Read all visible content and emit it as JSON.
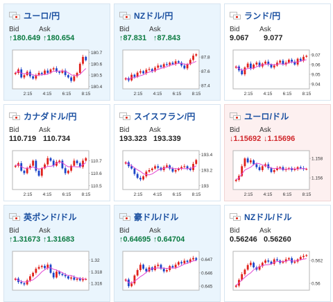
{
  "colors": {
    "up_candle": "#e0211b",
    "down_candle": "#1c44c8",
    "ma_line": "#e246d2",
    "frame": "#b5b5b5",
    "bid_up": "#0a7a40",
    "bid_down": "#d0262a",
    "title": "#1a4fa0"
  },
  "icons": {
    "up": "↑",
    "down": "↓"
  },
  "cards": [
    {
      "pair": "ユーロ/円",
      "flag": "eu-jp",
      "theme": "hl-blue",
      "bid_label": "Bid",
      "ask_label": "Ask",
      "bid": "180.649",
      "ask": "180.654",
      "trend": "up",
      "chart_data": {
        "type": "candlestick",
        "x_ticks": [
          "2:15",
          "4:15",
          "6:15",
          "8:15"
        ],
        "y_ticks": [
          "180.7",
          "180.6",
          "180.5",
          "180.4"
        ],
        "ylim": [
          180.38,
          180.72
        ],
        "closes": [
          180.52,
          180.55,
          180.48,
          180.5,
          180.53,
          180.49,
          180.47,
          180.5,
          180.52,
          180.51,
          180.54,
          180.52,
          180.55,
          180.56,
          180.53,
          180.52,
          180.54,
          180.5,
          180.48,
          180.45,
          180.49,
          180.52,
          180.6,
          180.66,
          180.63
        ]
      }
    },
    {
      "pair": "NZドル/円",
      "flag": "nz-jp",
      "theme": "hl-blue",
      "bid_label": "Bid",
      "ask_label": "Ask",
      "bid": "87.831",
      "ask": "87.843",
      "trend": "up",
      "chart_data": {
        "type": "candlestick",
        "x_ticks": [
          "2:15",
          "4:15",
          "6:15",
          "8:15"
        ],
        "y_ticks": [
          "87.8",
          "87.6",
          "87.4"
        ],
        "ylim": [
          87.35,
          87.9
        ],
        "closes": [
          87.5,
          87.47,
          87.55,
          87.52,
          87.58,
          87.6,
          87.57,
          87.62,
          87.63,
          87.6,
          87.65,
          87.68,
          87.66,
          87.7,
          87.69,
          87.72,
          87.7,
          87.74,
          87.72,
          87.68,
          87.64,
          87.7,
          87.76,
          87.82,
          87.84
        ]
      }
    },
    {
      "pair": "ランド/円",
      "flag": "za-jp",
      "theme": "",
      "bid_label": "Bid",
      "ask_label": "Ask",
      "bid": "9.067",
      "ask": "9.077",
      "trend": "flat",
      "chart_data": {
        "type": "candlestick",
        "x_ticks": [
          "2:15",
          "4:15",
          "6:15",
          "8:15"
        ],
        "y_ticks": [
          "9.07",
          "9.06",
          "9.05",
          "9.04"
        ],
        "ylim": [
          9.035,
          9.075
        ],
        "closes": [
          9.058,
          9.054,
          9.05,
          9.057,
          9.061,
          9.056,
          9.06,
          9.062,
          9.058,
          9.061,
          9.063,
          9.06,
          9.057,
          9.059,
          9.062,
          9.064,
          9.06,
          9.062,
          9.065,
          9.063,
          9.06,
          9.066,
          9.064,
          9.068,
          9.069
        ]
      }
    },
    {
      "pair": "カナダドル/円",
      "flag": "ca-jp",
      "theme": "",
      "bid_label": "Bid",
      "ask_label": "Ask",
      "bid": "110.719",
      "ask": "110.734",
      "trend": "flat",
      "chart_data": {
        "type": "candlestick",
        "x_ticks": [
          "2:15",
          "4:15",
          "6:15",
          "8:15"
        ],
        "y_ticks": [
          "110.7",
          "110.6",
          "110.5"
        ],
        "ylim": [
          110.47,
          110.78
        ],
        "closes": [
          110.66,
          110.68,
          110.62,
          110.6,
          110.64,
          110.66,
          110.7,
          110.62,
          110.58,
          110.64,
          110.67,
          110.72,
          110.7,
          110.66,
          110.69,
          110.7,
          110.64,
          110.6,
          110.62,
          110.66,
          110.7,
          110.68,
          110.65,
          110.7,
          110.72
        ]
      }
    },
    {
      "pair": "スイスフラン/円",
      "flag": "ch-jp",
      "theme": "",
      "bid_label": "Bid",
      "ask_label": "Ask",
      "bid": "193.323",
      "ask": "193.339",
      "trend": "flat",
      "chart_data": {
        "type": "candlestick",
        "x_ticks": [
          "2:15",
          "4:15",
          "6:15",
          "8:15"
        ],
        "y_ticks": [
          "193.4",
          "193.2",
          "193"
        ],
        "ylim": [
          192.95,
          193.45
        ],
        "closes": [
          193.3,
          193.25,
          193.22,
          193.15,
          193.1,
          193.08,
          193.12,
          193.18,
          193.2,
          193.22,
          193.25,
          193.23,
          193.2,
          193.24,
          193.26,
          193.22,
          193.18,
          193.2,
          193.22,
          193.24,
          193.25,
          193.22,
          193.2,
          193.28,
          193.33
        ]
      }
    },
    {
      "pair": "ユーロ/ドル",
      "flag": "eu-us",
      "theme": "hl-red",
      "bid_label": "Bid",
      "ask_label": "Ask",
      "bid": "1.15692",
      "ask": "1.15696",
      "trend": "down",
      "chart_data": {
        "type": "candlestick",
        "x_ticks": [
          "2:15",
          "4:15",
          "6:15",
          "8:15"
        ],
        "y_ticks": [
          "1.158",
          "1.156"
        ],
        "ylim": [
          1.1548,
          1.1588
        ],
        "closes": [
          1.1558,
          1.1562,
          1.1572,
          1.158,
          1.1576,
          1.1578,
          1.1574,
          1.1571,
          1.1568,
          1.1572,
          1.1574,
          1.157,
          1.1566,
          1.1568,
          1.157,
          1.1571,
          1.1568,
          1.1569,
          1.157,
          1.1568,
          1.1569,
          1.1571,
          1.157,
          1.1569,
          1.15692
        ]
      }
    },
    {
      "pair": "英ポンド/ドル",
      "flag": "gb-us",
      "theme": "hl-blue",
      "bid_label": "Bid",
      "ask_label": "Ask",
      "bid": "1.31673",
      "ask": "1.31683",
      "trend": "up",
      "chart_data": {
        "type": "candlestick",
        "x_ticks": [],
        "y_ticks": [
          "1.32",
          "1.318",
          "1.316"
        ],
        "ylim": [
          1.3148,
          1.3215
        ],
        "closes": [
          1.3168,
          1.3162,
          1.316,
          1.3158,
          1.3165,
          1.3172,
          1.3178,
          1.3185,
          1.3188,
          1.319,
          1.3186,
          1.3192,
          1.3178,
          1.317,
          1.318,
          1.3176,
          1.3174,
          1.3172,
          1.3168,
          1.317,
          1.3166,
          1.3168,
          1.3165,
          1.3167,
          1.31673
        ]
      }
    },
    {
      "pair": "豪ドル/ドル",
      "flag": "au-us",
      "theme": "hl-blue",
      "bid_label": "Bid",
      "ask_label": "Ask",
      "bid": "0.64695",
      "ask": "0.64704",
      "trend": "up",
      "chart_data": {
        "type": "candlestick",
        "x_ticks": [],
        "y_ticks": [
          "0.647",
          "0.646",
          "0.645"
        ],
        "ylim": [
          0.6447,
          0.6476
        ],
        "closes": [
          0.6455,
          0.645,
          0.6452,
          0.6458,
          0.6462,
          0.6466,
          0.6463,
          0.6461,
          0.6464,
          0.6462,
          0.6465,
          0.6466,
          0.6463,
          0.6461,
          0.6462,
          0.6465,
          0.6464,
          0.6466,
          0.6468,
          0.6467,
          0.6469,
          0.6468,
          0.647,
          0.6471,
          0.64695
        ]
      }
    },
    {
      "pair": "NZドル/ドル",
      "flag": "nz-us",
      "theme": "",
      "bid_label": "Bid",
      "ask_label": "Ask",
      "bid": "0.56246",
      "ask": "0.56260",
      "trend": "flat",
      "chart_data": {
        "type": "candlestick",
        "x_ticks": [],
        "y_ticks": [
          "0.562",
          "0.56"
        ],
        "ylim": [
          0.5594,
          0.5628
        ],
        "closes": [
          0.5598,
          0.5603,
          0.5608,
          0.5612,
          0.5616,
          0.5618,
          0.5614,
          0.5612,
          0.5615,
          0.5618,
          0.562,
          0.5619,
          0.5617,
          0.5621,
          0.562,
          0.5618,
          0.5619,
          0.5621,
          0.5622,
          0.5618,
          0.5619,
          0.5621,
          0.5623,
          0.5624,
          0.56246
        ]
      }
    }
  ]
}
